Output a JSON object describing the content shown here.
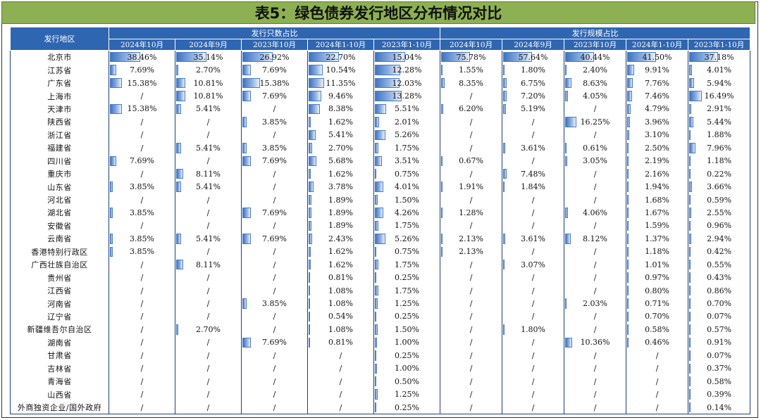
{
  "title": "表5：绿色债券发行地区分布情况对比",
  "header": {
    "region": "发行地区",
    "group_count": "发行只数占比",
    "group_scale": "发行规模占比",
    "periods": [
      "2024年10月",
      "2024年9月",
      "2023年10月",
      "2024年1-10月",
      "2023年1-10月"
    ]
  },
  "rows": [
    {
      "region": "北京市",
      "count": [
        "38.46%",
        "35.14%",
        "26.92%",
        "22.70%",
        "15.04%"
      ],
      "scale": [
        "75.78%",
        "57.64%",
        "40.44%",
        "41.50%",
        "37.18%"
      ]
    },
    {
      "region": "江苏省",
      "count": [
        "7.69%",
        "2.70%",
        "7.69%",
        "10.54%",
        "12.28%"
      ],
      "scale": [
        "1.55%",
        "1.80%",
        "2.40%",
        "9.91%",
        "4.01%"
      ]
    },
    {
      "region": "广东省",
      "count": [
        "15.38%",
        "10.81%",
        "15.38%",
        "11.35%",
        "12.03%"
      ],
      "scale": [
        "8.35%",
        "6.75%",
        "8.63%",
        "7.76%",
        "5.94%"
      ]
    },
    {
      "region": "上海市",
      "count": [
        "/",
        "10.81%",
        "7.69%",
        "9.46%",
        "13.28%"
      ],
      "scale": [
        "/",
        "7.20%",
        "4.05%",
        "7.46%",
        "16.49%"
      ]
    },
    {
      "region": "天津市",
      "count": [
        "15.38%",
        "5.41%",
        "/",
        "8.38%",
        "5.51%"
      ],
      "scale": [
        "6.20%",
        "5.19%",
        "/",
        "4.79%",
        "2.91%"
      ]
    },
    {
      "region": "陕西省",
      "count": [
        "/",
        "/",
        "3.85%",
        "1.62%",
        "2.01%"
      ],
      "scale": [
        "/",
        "/",
        "16.25%",
        "3.96%",
        "5.44%"
      ]
    },
    {
      "region": "浙江省",
      "count": [
        "/",
        "/",
        "/",
        "5.41%",
        "5.26%"
      ],
      "scale": [
        "/",
        "/",
        "/",
        "3.10%",
        "1.88%"
      ]
    },
    {
      "region": "福建省",
      "count": [
        "/",
        "5.41%",
        "3.85%",
        "2.70%",
        "1.75%"
      ],
      "scale": [
        "/",
        "3.61%",
        "0.61%",
        "2.50%",
        "7.96%"
      ]
    },
    {
      "region": "四川省",
      "count": [
        "7.69%",
        "/",
        "7.69%",
        "5.68%",
        "3.51%"
      ],
      "scale": [
        "0.67%",
        "/",
        "3.05%",
        "2.19%",
        "1.18%"
      ]
    },
    {
      "region": "重庆市",
      "count": [
        "/",
        "8.11%",
        "/",
        "1.62%",
        "0.75%"
      ],
      "scale": [
        "/",
        "7.48%",
        "/",
        "2.16%",
        "0.22%"
      ]
    },
    {
      "region": "山东省",
      "count": [
        "3.85%",
        "5.41%",
        "/",
        "3.78%",
        "4.01%"
      ],
      "scale": [
        "1.91%",
        "1.84%",
        "/",
        "1.94%",
        "3.66%"
      ]
    },
    {
      "region": "河北省",
      "count": [
        "/",
        "/",
        "/",
        "1.89%",
        "1.50%"
      ],
      "scale": [
        "/",
        "/",
        "/",
        "1.68%",
        "0.59%"
      ]
    },
    {
      "region": "湖北省",
      "count": [
        "3.85%",
        "/",
        "7.69%",
        "1.89%",
        "4.26%"
      ],
      "scale": [
        "1.28%",
        "/",
        "4.06%",
        "1.67%",
        "2.55%"
      ]
    },
    {
      "region": "安徽省",
      "count": [
        "/",
        "/",
        "/",
        "1.89%",
        "1.75%"
      ],
      "scale": [
        "/",
        "/",
        "/",
        "1.59%",
        "0.96%"
      ]
    },
    {
      "region": "云南省",
      "count": [
        "3.85%",
        "5.41%",
        "7.69%",
        "2.43%",
        "5.26%"
      ],
      "scale": [
        "2.13%",
        "3.61%",
        "8.12%",
        "1.37%",
        "2.94%"
      ]
    },
    {
      "region": "香港特别行政区",
      "count": [
        "3.85%",
        "/",
        "/",
        "1.62%",
        "0.75%"
      ],
      "scale": [
        "2.13%",
        "/",
        "/",
        "1.18%",
        "0.42%"
      ]
    },
    {
      "region": "广西壮族自治区",
      "count": [
        "/",
        "8.11%",
        "/",
        "1.62%",
        "1.75%"
      ],
      "scale": [
        "/",
        "3.07%",
        "/",
        "1.01%",
        "0.55%"
      ]
    },
    {
      "region": "贵州省",
      "count": [
        "/",
        "/",
        "/",
        "0.81%",
        "0.25%"
      ],
      "scale": [
        "/",
        "/",
        "/",
        "0.97%",
        "0.43%"
      ]
    },
    {
      "region": "江西省",
      "count": [
        "/",
        "/",
        "/",
        "1.08%",
        "1.75%"
      ],
      "scale": [
        "/",
        "/",
        "/",
        "0.80%",
        "0.86%"
      ]
    },
    {
      "region": "河南省",
      "count": [
        "/",
        "/",
        "3.85%",
        "1.08%",
        "1.25%"
      ],
      "scale": [
        "/",
        "/",
        "2.03%",
        "0.71%",
        "0.70%"
      ]
    },
    {
      "region": "辽宁省",
      "count": [
        "/",
        "/",
        "/",
        "0.54%",
        "0.25%"
      ],
      "scale": [
        "/",
        "/",
        "/",
        "0.70%",
        "0.07%"
      ]
    },
    {
      "region": "新疆维吾尔自治区",
      "count": [
        "/",
        "2.70%",
        "/",
        "1.08%",
        "1.50%"
      ],
      "scale": [
        "/",
        "1.80%",
        "/",
        "0.58%",
        "0.57%"
      ]
    },
    {
      "region": "湖南省",
      "count": [
        "/",
        "/",
        "7.69%",
        "0.81%",
        "1.00%"
      ],
      "scale": [
        "/",
        "/",
        "10.36%",
        "0.46%",
        "0.91%"
      ]
    },
    {
      "region": "甘肃省",
      "count": [
        "/",
        "/",
        "/",
        "/",
        "0.25%"
      ],
      "scale": [
        "/",
        "/",
        "/",
        "/",
        "0.07%"
      ]
    },
    {
      "region": "吉林省",
      "count": [
        "/",
        "/",
        "/",
        "/",
        "1.00%"
      ],
      "scale": [
        "/",
        "/",
        "/",
        "/",
        "0.37%"
      ]
    },
    {
      "region": "青海省",
      "count": [
        "/",
        "/",
        "/",
        "/",
        "0.50%"
      ],
      "scale": [
        "/",
        "/",
        "/",
        "/",
        "0.58%"
      ]
    },
    {
      "region": "山西省",
      "count": [
        "/",
        "/",
        "/",
        "/",
        "1.25%"
      ],
      "scale": [
        "/",
        "/",
        "/",
        "/",
        "0.39%"
      ]
    },
    {
      "region": "外商独资企业/国外政府",
      "count": [
        "/",
        "/",
        "/",
        "/",
        "0.25%"
      ],
      "scale": [
        "/",
        "/",
        "/",
        "/",
        "0.14%"
      ]
    }
  ]
}
